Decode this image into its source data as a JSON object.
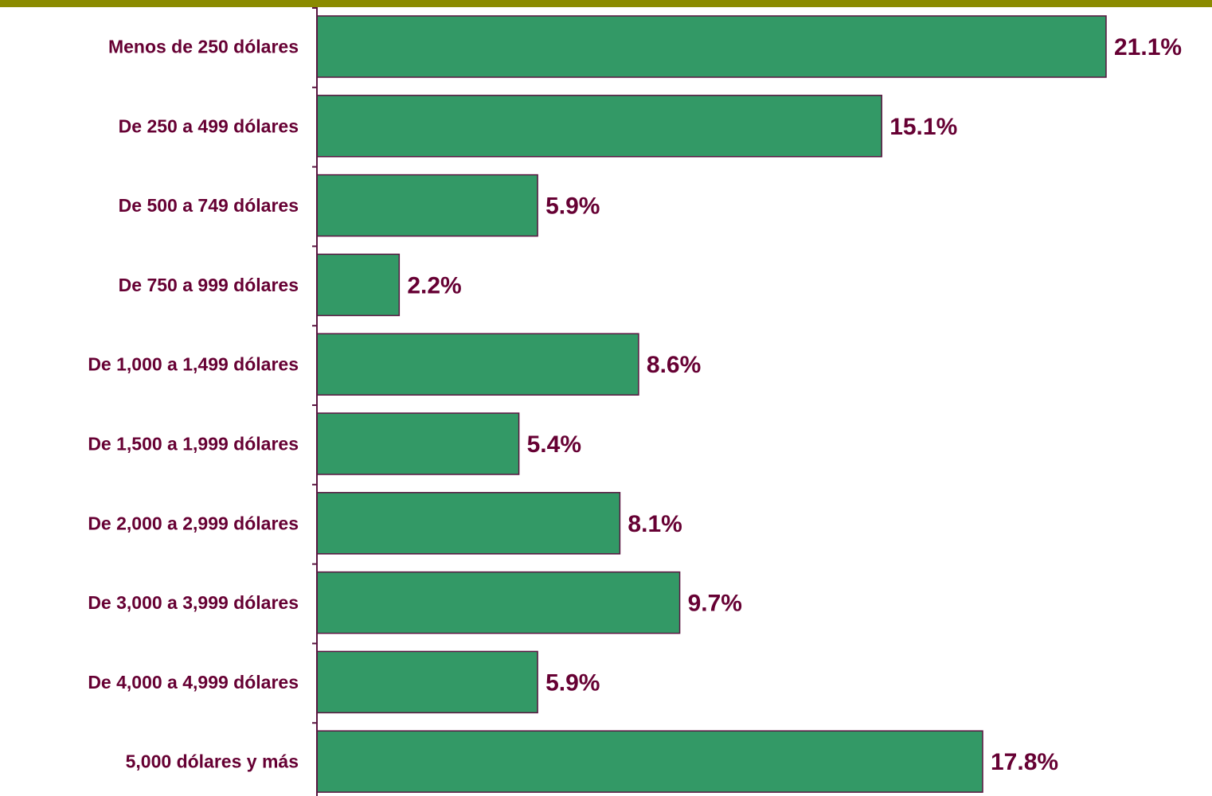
{
  "colors": {
    "top_band": "#8b8b00",
    "bar_fill": "#339966",
    "bar_stroke": "#5a1440",
    "axis": "#5a1440",
    "text": "#660033"
  },
  "chart_data": {
    "type": "bar",
    "orientation": "horizontal",
    "title": "",
    "xlabel": "",
    "ylabel": "",
    "grid": false,
    "legend": "none",
    "xlim": [
      0,
      21.1
    ],
    "categories": [
      "Menos de 250 dólares",
      "De 250 a 499 dólares",
      "De 500 a 749 dólares",
      "De 750 a 999 dólares",
      "De 1,000 a 1,499 dólares",
      "De 1,500 a 1,999 dólares",
      "De 2,000 a 2,999 dólares",
      "De 3,000 a 3,999 dólares",
      "De 4,000 a 4,999 dólares",
      "5,000 dólares y más"
    ],
    "values": [
      21.1,
      15.1,
      5.9,
      2.2,
      8.6,
      5.4,
      8.1,
      9.7,
      5.9,
      17.8
    ],
    "value_labels": [
      "21.1%",
      "15.1%",
      "5.9%",
      "2.2%",
      "8.6%",
      "5.4%",
      "8.1%",
      "9.7%",
      "5.9%",
      "17.8%"
    ]
  }
}
